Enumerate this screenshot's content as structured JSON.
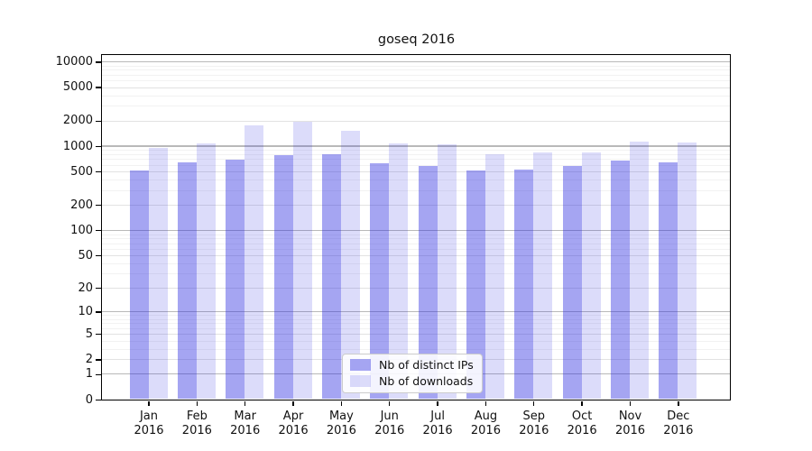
{
  "chart_data": {
    "type": "bar",
    "title": "goseq 2016",
    "categories": [
      "Jan",
      "Feb",
      "Mar",
      "Apr",
      "May",
      "Jun",
      "Jul",
      "Aug",
      "Sep",
      "Oct",
      "Nov",
      "Dec"
    ],
    "year_label": "2016",
    "series": [
      {
        "name": "Nb of distinct IPs",
        "values": [
          520,
          640,
          690,
          780,
          800,
          630,
          580,
          520,
          530,
          580,
          680,
          640
        ],
        "base_color": "#2828e1",
        "alpha": 0.42
      },
      {
        "name": "Nb of downloads",
        "values": [
          950,
          1080,
          1750,
          1950,
          1530,
          1070,
          1060,
          800,
          850,
          850,
          1140,
          1100
        ],
        "base_color": "#2828e1",
        "alpha": 0.16
      }
    ],
    "yticks": [
      0,
      1,
      2,
      5,
      10,
      20,
      50,
      100,
      200,
      500,
      1000,
      2000,
      5000,
      10000
    ],
    "scale": "log(value+1)",
    "ylim": [
      0,
      13000
    ],
    "grid": true,
    "legend_position": "lower center",
    "colors": {
      "grid_major": "#b9b9b9",
      "grid_tick": "#e2e2e2",
      "grid_minor": "#f2f2f2",
      "axis": "#000000",
      "text": "#111111"
    }
  }
}
